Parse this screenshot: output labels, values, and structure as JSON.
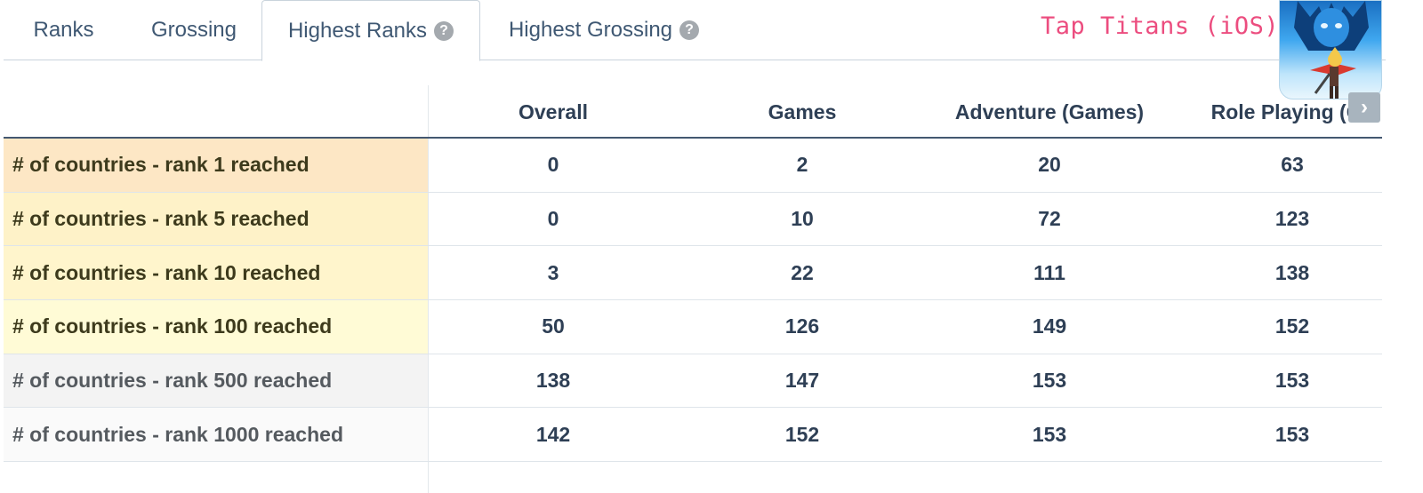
{
  "tabs": [
    {
      "label": "Ranks",
      "active": false,
      "help": false
    },
    {
      "label": "Grossing",
      "active": false,
      "help": false
    },
    {
      "label": "Highest Ranks",
      "active": true,
      "help": true
    },
    {
      "label": "Highest Grossing",
      "active": false,
      "help": true
    }
  ],
  "help_glyph": "?",
  "app": {
    "title": "Tap Titans (iOS)",
    "icon": "tap-titans-app-icon"
  },
  "table": {
    "columns": [
      "Overall",
      "Games",
      "Adventure (Games)",
      "Role Playing (Ga"
    ],
    "rows": [
      {
        "label": "# of countries - rank 1 reached",
        "values": [
          "0",
          "2",
          "20",
          "63"
        ],
        "highlight": "#fde7c5",
        "text_color": "#3d3a1c"
      },
      {
        "label": "# of countries - rank 5 reached",
        "values": [
          "0",
          "10",
          "72",
          "123"
        ],
        "highlight": "#fef2c8",
        "text_color": "#3d3a1c"
      },
      {
        "label": "# of countries - rank 10 reached",
        "values": [
          "3",
          "22",
          "111",
          "138"
        ],
        "highlight": "#fff5cc",
        "text_color": "#3d3a1c"
      },
      {
        "label": "# of countries - rank 100 reached",
        "values": [
          "50",
          "126",
          "149",
          "152"
        ],
        "highlight": "#fffbd6",
        "text_color": "#3d3a1c"
      },
      {
        "label": "# of countries - rank 500 reached",
        "values": [
          "138",
          "147",
          "153",
          "153"
        ],
        "highlight": "#f3f3f3",
        "text_color": "#555a5f"
      },
      {
        "label": "# of countries - rank 1000 reached",
        "values": [
          "142",
          "152",
          "153",
          "153"
        ],
        "highlight": "#fafafa",
        "text_color": "#555a5f"
      }
    ],
    "next_glyph": "›"
  }
}
